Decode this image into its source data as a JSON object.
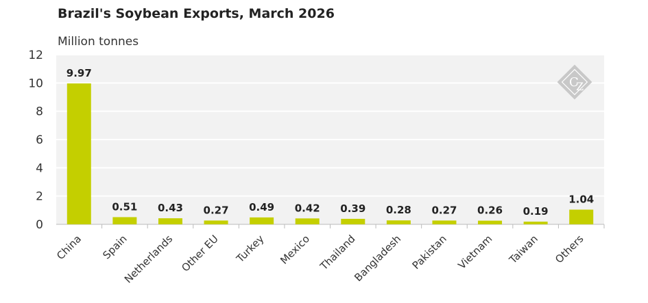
{
  "chart_data": {
    "type": "bar",
    "title": "Brazil's Soybean Exports, March 2026",
    "ylabel": "Million tonnes",
    "xlabel": "",
    "categories": [
      "China",
      "Spain",
      "Netherlands",
      "Other EU",
      "Turkey",
      "Mexico",
      "Thailand",
      "Bangladesh",
      "Pakistan",
      "Vietnam",
      "Taiwan",
      "Others"
    ],
    "values": [
      9.97,
      0.51,
      0.43,
      0.27,
      0.49,
      0.42,
      0.39,
      0.28,
      0.27,
      0.26,
      0.19,
      1.04
    ],
    "data_labels": [
      "9.97",
      "0.51",
      "0.43",
      "0.27",
      "0.49",
      "0.42",
      "0.39",
      "0.28",
      "0.27",
      "0.26",
      "0.19",
      "1.04"
    ],
    "ylim": [
      0,
      12
    ],
    "yticks": [
      0,
      2,
      4,
      6,
      8,
      10,
      12
    ],
    "grid": true,
    "bar_color": "#c4cf00",
    "plot_background": "#f2f2f2",
    "logo_icon": "cz-diamond-logo"
  }
}
